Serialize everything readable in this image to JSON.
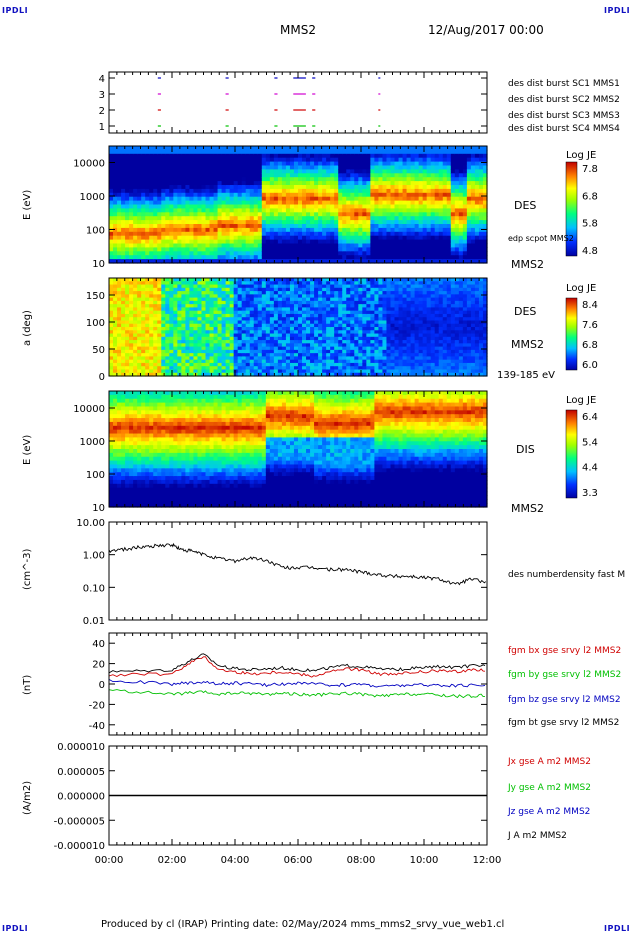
{
  "corners": {
    "tl": "IPDLI",
    "tr": "IPDLI",
    "bl": "IPDLI",
    "br": "IPDLI"
  },
  "header": {
    "spacecraft": "MMS2",
    "date": "12/Aug/2017 00:00"
  },
  "footer": {
    "text": "Produced by cl (IRAP)   Printing date: 02/May/2024   mms_mms2_srvy_vue_web1.cl"
  },
  "colors": {
    "red": "#d00000",
    "green": "#00c000",
    "blue": "#0000c0",
    "magenta": "#d000d0",
    "black": "#000000"
  },
  "chart_data": [
    {
      "type": "scatter",
      "id": "burst",
      "yticks": [
        "1",
        "2",
        "3",
        "4"
      ],
      "legend": [
        {
          "text": "des dist burst SC1 MMS1",
          "color": "#0000c0"
        },
        {
          "text": "des dist burst SC2 MMS2",
          "color": "#d000d0"
        },
        {
          "text": "des dist burst SC3 MMS3",
          "color": "#d00000"
        },
        {
          "text": "des dist burst SC4 MMS4",
          "color": "#00c000"
        }
      ],
      "intervals_hours": [
        [
          1.55,
          1.65
        ],
        [
          3.7,
          3.8
        ],
        [
          5.25,
          5.35
        ],
        [
          5.85,
          6.25
        ],
        [
          6.45,
          6.55
        ],
        [
          8.55,
          8.6
        ]
      ]
    },
    {
      "type": "heatmap",
      "id": "des",
      "ylabel": "E (eV)",
      "yticks": [
        "10",
        "100",
        "1000",
        "10000"
      ],
      "label": "DES",
      "label2": "edp scpot MMS2",
      "label3": "MMS2",
      "colorbar": {
        "title": "Log JE",
        "ticks": [
          "7.8",
          "6.8",
          "5.8",
          "4.8"
        ]
      }
    },
    {
      "type": "heatmap",
      "id": "pad",
      "ylabel": "a (deg)",
      "yticks": [
        "0",
        "50",
        "100",
        "150"
      ],
      "label": "DES",
      "label2": "MMS2",
      "label3": "139-185 eV",
      "colorbar": {
        "title": "Log JE",
        "ticks": [
          "8.4",
          "7.6",
          "6.8",
          "6.0"
        ]
      }
    },
    {
      "type": "heatmap",
      "id": "dis",
      "ylabel": "E (eV)",
      "yticks": [
        "10",
        "100",
        "1000",
        "10000"
      ],
      "label": "DIS",
      "label2": "MMS2",
      "colorbar": {
        "title": "Log JE",
        "ticks": [
          "6.4",
          "5.4",
          "4.4",
          "3.3"
        ]
      }
    },
    {
      "type": "line",
      "id": "density",
      "ylabel": "(cm^-3)",
      "yticks": [
        "0.01",
        "0.10",
        "1.00",
        "10.00"
      ],
      "yscale": "log",
      "ylim": [
        0.01,
        10
      ],
      "legend": [
        {
          "text": "des numberdensity fast M",
          "color": "#000000"
        }
      ],
      "x": [
        0,
        0.5,
        1,
        1.5,
        2,
        2.3,
        2.6,
        3,
        3.5,
        4,
        4.5,
        5,
        5.5,
        6,
        6.5,
        7,
        7.5,
        8,
        8.5,
        9,
        9.5,
        10,
        10.5,
        11,
        11.5,
        12
      ],
      "values": [
        1.3,
        1.5,
        1.7,
        1.9,
        2.0,
        1.4,
        1.3,
        1.0,
        0.75,
        0.65,
        0.8,
        0.65,
        0.4,
        0.4,
        0.4,
        0.35,
        0.35,
        0.3,
        0.25,
        0.22,
        0.22,
        0.2,
        0.18,
        0.12,
        0.18,
        0.14
      ]
    },
    {
      "type": "line",
      "id": "fgm",
      "ylabel": "(nT)",
      "yticks": [
        "-40",
        "-20",
        "0",
        "20",
        "40"
      ],
      "ylim": [
        -50,
        50
      ],
      "legend": [
        {
          "text": "fgm bx gse srvy l2 MMS2",
          "color": "#d00000"
        },
        {
          "text": "fgm by gse srvy l2 MMS2",
          "color": "#00c000"
        },
        {
          "text": "fgm bz gse srvy l2 MMS2",
          "color": "#0000c0"
        },
        {
          "text": "fgm bt gse srvy l2 MMS2",
          "color": "#000000"
        }
      ],
      "x": [
        0,
        1,
        2,
        2.5,
        3,
        3.5,
        4,
        4.5,
        5,
        5.5,
        6,
        6.5,
        7,
        7.5,
        8,
        8.5,
        9,
        9.5,
        10,
        10.5,
        11,
        11.5,
        12
      ],
      "series": [
        {
          "name": "fgm bx gse srvy l2 MMS2",
          "color": "#d00000",
          "values": [
            8,
            10,
            9,
            20,
            27,
            14,
            12,
            10,
            11,
            12,
            10,
            8,
            12,
            15,
            14,
            10,
            9,
            11,
            12,
            13,
            12,
            14,
            14
          ]
        },
        {
          "name": "fgm by gse srvy l2 MMS2",
          "color": "#00c000",
          "values": [
            -6,
            -8,
            -10,
            -9,
            -8,
            -10,
            -9,
            -9,
            -10,
            -9,
            -10,
            -11,
            -10,
            -9,
            -10,
            -12,
            -11,
            -10,
            -10,
            -11,
            -12,
            -12,
            -11
          ]
        },
        {
          "name": "fgm bz gse srvy l2 MMS2",
          "color": "#0000c0",
          "values": [
            3,
            2,
            0,
            1,
            2,
            0,
            1,
            0,
            -1,
            0,
            1,
            0,
            -1,
            -1,
            0,
            -2,
            -2,
            -1,
            -1,
            -1,
            -2,
            -1,
            -1
          ]
        },
        {
          "name": "fgm bt gse srvy l2 MMS2",
          "color": "#000000",
          "values": [
            12,
            13,
            14,
            22,
            29,
            18,
            15,
            14,
            15,
            16,
            14,
            13,
            16,
            18,
            17,
            15,
            14,
            15,
            16,
            17,
            16,
            18,
            18
          ]
        }
      ]
    },
    {
      "type": "line",
      "id": "current",
      "ylabel": "(A/m2)",
      "yticks": [
        "-0.000010",
        "-0.000005",
        "0.000000",
        "0.000005",
        "0.000010"
      ],
      "ylim": [
        -1e-05,
        1e-05
      ],
      "legend": [
        {
          "text": "Jx gse A m2 MMS2",
          "color": "#d00000"
        },
        {
          "text": "Jy gse A m2 MMS2",
          "color": "#00c000"
        },
        {
          "text": "Jz gse A m2 MMS2",
          "color": "#0000c0"
        },
        {
          "text": "J A m2 MMS2",
          "color": "#000000"
        }
      ],
      "x": [
        0,
        12
      ],
      "values": [
        0,
        0
      ]
    }
  ],
  "xaxis": {
    "ticks": [
      "00:00",
      "02:00",
      "04:00",
      "06:00",
      "08:00",
      "10:00",
      "12:00"
    ]
  }
}
